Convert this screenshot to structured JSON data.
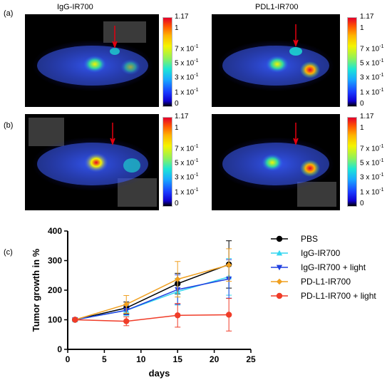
{
  "figure": {
    "col_titles": [
      "IgG-IR700",
      "PDL1-IR700"
    ],
    "row_labels": [
      "(a)",
      "(b)",
      "(c)"
    ],
    "colorbar_labels": [
      "1.17",
      "1",
      "7 x 10",
      "5 x 10",
      "3 x 10",
      "1 x 10",
      "0"
    ],
    "colorbar_exponent": "-1",
    "colors": {
      "red_arrow": "#e3000f"
    }
  },
  "chart_data": {
    "type": "line",
    "xlabel": "days",
    "ylabel": "Tumor growth in %",
    "xlim": [
      0,
      25
    ],
    "ylim": [
      0,
      400
    ],
    "xticks": [
      0,
      5,
      10,
      15,
      20,
      25
    ],
    "yticks": [
      0,
      100,
      200,
      300,
      400
    ],
    "legend_position": "right",
    "x": [
      1,
      8,
      15,
      22
    ],
    "series": [
      {
        "name": "PBS",
        "color": "#000000",
        "marker": "circle",
        "values": [
          100,
          140,
          222,
          287
        ],
        "errors": [
          3,
          20,
          35,
          80
        ]
      },
      {
        "name": "IgG-IR700",
        "color": "#33d6f0",
        "marker": "triangle-up",
        "values": [
          100,
          132,
          195,
          245
        ],
        "errors": [
          3,
          18,
          45,
          62
        ]
      },
      {
        "name": "IgG-IR700 + light",
        "color": "#2040e0",
        "marker": "triangle-down",
        "values": [
          100,
          132,
          202,
          238
        ],
        "errors": [
          3,
          15,
          50,
          65
        ]
      },
      {
        "name": "PD-L1-IR700",
        "color": "#f0a020",
        "marker": "diamond",
        "values": [
          100,
          152,
          237,
          285
        ],
        "errors": [
          3,
          30,
          60,
          55
        ]
      },
      {
        "name": "PD-L1-IR700 + light",
        "color": "#f03c28",
        "marker": "circle",
        "values": [
          100,
          95,
          115,
          117
        ],
        "errors": [
          3,
          15,
          40,
          55
        ]
      }
    ]
  }
}
